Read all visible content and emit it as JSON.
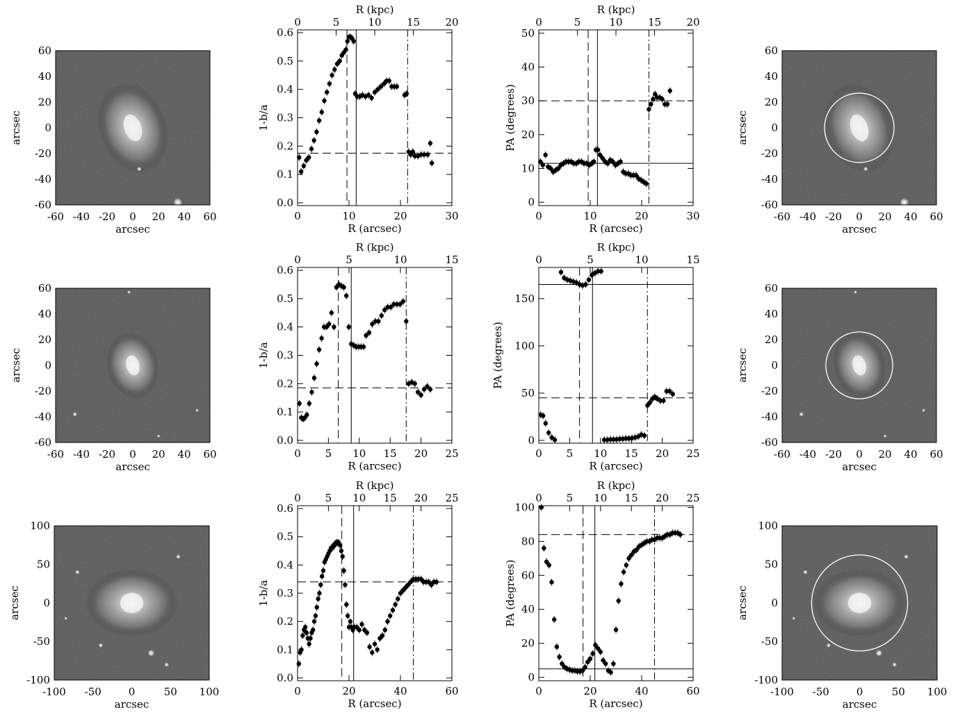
{
  "chart_data": [
    {
      "type": "image",
      "row": 0,
      "xlabel": "arcsec",
      "ylabel": "arcsec",
      "xlim": [
        -60,
        60
      ],
      "ylim": [
        -60,
        60
      ],
      "xticks": [
        -60,
        -40,
        -20,
        0,
        20,
        40,
        60
      ],
      "yticks": [
        -60,
        -40,
        -20,
        0,
        20,
        40,
        60
      ],
      "show_circle": false,
      "galaxy": {
        "sx": 0.22,
        "sy": 0.3,
        "angle": -20
      },
      "stars": [
        {
          "x": 35,
          "y": -58,
          "r": 4
        },
        {
          "x": 5,
          "y": -32,
          "r": 2
        }
      ]
    },
    {
      "type": "scatter",
      "row": 0,
      "quantity": "ellipticity",
      "xlabel": "R (arcsec)",
      "ylabel": "1-b/a",
      "top_xlabel": "R (kpc)",
      "xlim": [
        0,
        30
      ],
      "ylim": [
        -0.01,
        0.61
      ],
      "top_xlim": [
        0,
        20
      ],
      "xticks": [
        0,
        10,
        20,
        30
      ],
      "yticks": [
        0.0,
        0.1,
        0.2,
        0.3,
        0.4,
        0.5,
        0.6
      ],
      "yticklabels": [
        "0.0",
        "0.1",
        "0.2",
        "0.3",
        "0.4",
        "0.5",
        "0.6"
      ],
      "top_xticks": [
        0,
        5,
        10,
        15,
        20
      ],
      "lines": {
        "dashed_v": 9.6,
        "solid_v": 11.4,
        "dashdot_v": 21.4,
        "dashed_h": 0.175
      },
      "x": [
        0.3,
        0.7,
        1.2,
        1.7,
        2.2,
        2.7,
        3.2,
        3.7,
        4.2,
        4.7,
        5.2,
        5.7,
        6.2,
        6.7,
        7.2,
        7.7,
        8.2,
        8.6,
        9.0,
        9.4,
        9.7,
        10.0,
        10.3,
        10.6,
        10.9,
        11.2,
        11.6,
        12.1,
        12.6,
        13.2,
        13.8,
        14.4,
        15.0,
        15.6,
        16.2,
        16.8,
        17.3,
        17.8,
        18.3,
        18.8,
        19.3,
        20.8,
        21.2,
        21.6,
        22.0,
        22.4,
        22.8,
        23.4,
        24.0,
        24.6,
        25.3,
        25.8,
        26.1
      ],
      "y": [
        0.16,
        0.11,
        0.13,
        0.15,
        0.16,
        0.19,
        0.22,
        0.25,
        0.29,
        0.32,
        0.36,
        0.39,
        0.42,
        0.45,
        0.47,
        0.49,
        0.5,
        0.52,
        0.53,
        0.54,
        0.57,
        0.585,
        0.585,
        0.58,
        0.57,
        0.385,
        0.375,
        0.375,
        0.38,
        0.375,
        0.38,
        0.37,
        0.39,
        0.4,
        0.41,
        0.42,
        0.43,
        0.43,
        0.41,
        0.41,
        0.41,
        0.38,
        0.385,
        0.18,
        0.17,
        0.18,
        0.165,
        0.165,
        0.17,
        0.17,
        0.17,
        0.21,
        0.14
      ]
    },
    {
      "type": "scatter",
      "row": 0,
      "quantity": "position_angle",
      "xlabel": "R (arcsec)",
      "ylabel": "PA (degrees)",
      "top_xlabel": "R (kpc)",
      "xlim": [
        0,
        30
      ],
      "ylim": [
        -1,
        51
      ],
      "top_xlim": [
        0,
        20
      ],
      "xticks": [
        0,
        10,
        20,
        30
      ],
      "yticks": [
        0,
        10,
        20,
        30,
        40,
        50
      ],
      "yticklabels": [
        "0",
        "10",
        "20",
        "30",
        "40",
        "50"
      ],
      "top_xticks": [
        0,
        5,
        10,
        15,
        20
      ],
      "lines": {
        "dashed_v": 9.6,
        "solid_v": 11.4,
        "dashdot_v": 21.4,
        "dashed_h": 30,
        "solid_h": 11.5
      },
      "x": [
        0.3,
        0.8,
        1.3,
        1.8,
        2.3,
        2.8,
        3.3,
        3.8,
        4.3,
        4.8,
        5.3,
        5.8,
        6.3,
        6.8,
        7.3,
        7.8,
        8.3,
        8.8,
        9.3,
        9.8,
        10.3,
        10.7,
        11.1,
        11.5,
        11.9,
        12.4,
        12.9,
        13.4,
        13.9,
        14.4,
        14.9,
        15.4,
        15.9,
        16.4,
        16.9,
        17.4,
        17.9,
        18.4,
        18.9,
        19.4,
        19.9,
        20.4,
        20.9,
        21.4,
        21.8,
        22.2,
        22.6,
        23.0,
        23.5,
        24.0,
        24.5,
        25.0,
        25.5
      ],
      "y": [
        12,
        11,
        14,
        10.5,
        10,
        9,
        9.5,
        10,
        11,
        11.5,
        12,
        12,
        12,
        11.5,
        11.5,
        12,
        12,
        11.5,
        11.5,
        11,
        11.5,
        12,
        15.5,
        15.5,
        14,
        13,
        12,
        11.5,
        12.5,
        12,
        11,
        11.5,
        12,
        9,
        8.5,
        8.5,
        8,
        8,
        8,
        7,
        6.5,
        6,
        5.5,
        27.5,
        29,
        30.5,
        32,
        31,
        31,
        30.5,
        29,
        29,
        33
      ]
    },
    {
      "type": "image",
      "row": 0,
      "xlabel": "arcsec",
      "ylabel": "arcsec",
      "xlim": [
        -60,
        60
      ],
      "ylim": [
        -60,
        60
      ],
      "xticks": [
        -60,
        -40,
        -20,
        0,
        20,
        40,
        60
      ],
      "yticks": [
        -60,
        -40,
        -20,
        0,
        20,
        40,
        60
      ],
      "show_circle": true,
      "circle_radius": 27,
      "galaxy": {
        "sx": 0.22,
        "sy": 0.3,
        "angle": -20
      },
      "stars": [
        {
          "x": 35,
          "y": -58,
          "r": 4
        },
        {
          "x": 5,
          "y": -32,
          "r": 2
        }
      ]
    },
    {
      "type": "image",
      "row": 1,
      "xlabel": "arcsec",
      "ylabel": "arcsec",
      "xlim": [
        -60,
        60
      ],
      "ylim": [
        -60,
        60
      ],
      "xticks": [
        -60,
        -40,
        -20,
        0,
        20,
        40,
        60
      ],
      "yticks": [
        -60,
        -40,
        -20,
        0,
        20,
        40,
        60
      ],
      "show_circle": false,
      "galaxy": {
        "sx": 0.17,
        "sy": 0.22,
        "angle": -15
      },
      "stars": [
        {
          "x": -45,
          "y": -38,
          "r": 2
        },
        {
          "x": 20,
          "y": -55,
          "r": 1.5
        },
        {
          "x": 50,
          "y": -35,
          "r": 1.5
        },
        {
          "x": -3,
          "y": 57,
          "r": 1.5
        }
      ]
    },
    {
      "type": "scatter",
      "row": 1,
      "quantity": "ellipticity",
      "xlabel": "R (arcsec)",
      "ylabel": "1-b/a",
      "top_xlabel": "R (kpc)",
      "xlim": [
        0,
        25
      ],
      "ylim": [
        -0.01,
        0.61
      ],
      "top_xlim": [
        0,
        15
      ],
      "xticks": [
        0,
        5,
        10,
        15,
        20,
        25
      ],
      "yticks": [
        0.0,
        0.1,
        0.2,
        0.3,
        0.4,
        0.5,
        0.6
      ],
      "yticklabels": [
        "0.0",
        "0.1",
        "0.2",
        "0.3",
        "0.4",
        "0.5",
        "0.6"
      ],
      "top_xticks": [
        0,
        5,
        10,
        15
      ],
      "lines": {
        "dashed_v": 6.6,
        "solid_v": 8.7,
        "dashdot_v": 17.6,
        "dashed_h": 0.185
      },
      "x": [
        0.3,
        0.6,
        0.9,
        1.2,
        1.5,
        1.9,
        2.3,
        2.7,
        3.1,
        3.5,
        3.9,
        4.3,
        4.7,
        5.1,
        5.5,
        5.9,
        6.3,
        6.7,
        7.1,
        7.5,
        7.9,
        8.3,
        8.7,
        9.1,
        9.5,
        9.9,
        10.3,
        10.7,
        11.1,
        11.6,
        12.1,
        12.6,
        13.1,
        13.6,
        14.1,
        14.6,
        15.1,
        15.6,
        16.1,
        16.6,
        17.1,
        17.6,
        18.0,
        18.5,
        19.0,
        19.5,
        20.0,
        20.5,
        21.0,
        21.5
      ],
      "y": [
        0.13,
        0.08,
        0.075,
        0.08,
        0.09,
        0.13,
        0.17,
        0.22,
        0.27,
        0.32,
        0.36,
        0.4,
        0.4,
        0.41,
        0.45,
        0.4,
        0.54,
        0.55,
        0.545,
        0.54,
        0.51,
        0.4,
        0.34,
        0.335,
        0.33,
        0.33,
        0.33,
        0.33,
        0.37,
        0.38,
        0.41,
        0.42,
        0.42,
        0.44,
        0.46,
        0.47,
        0.47,
        0.48,
        0.48,
        0.48,
        0.49,
        0.42,
        0.2,
        0.205,
        0.2,
        0.17,
        0.16,
        0.18,
        0.19,
        0.18
      ]
    },
    {
      "type": "scatter",
      "row": 1,
      "quantity": "position_angle",
      "xlabel": "R (arcsec)",
      "ylabel": "PA (degrees)",
      "top_xlabel": "R (kpc)",
      "xlim": [
        0,
        25
      ],
      "ylim": [
        -3,
        183
      ],
      "top_xlim": [
        0,
        15
      ],
      "xticks": [
        0,
        5,
        10,
        15,
        20,
        25
      ],
      "yticks": [
        0,
        50,
        100,
        150
      ],
      "yticklabels": [
        "0",
        "50",
        "100",
        "150"
      ],
      "top_xticks": [
        0,
        5,
        10,
        15
      ],
      "lines": {
        "dashed_v": 6.6,
        "solid_v": 8.7,
        "dashdot_v": 17.6,
        "dashed_h": 45,
        "solid_h": 165
      },
      "x": [
        0.3,
        0.7,
        1.1,
        1.6,
        2.1,
        2.6,
        3.6,
        4.1,
        4.6,
        5.1,
        5.6,
        6.1,
        6.6,
        7.1,
        7.6,
        8.1,
        8.6,
        9.1,
        9.6,
        10.1,
        10.6,
        11.1,
        11.6,
        12.1,
        12.6,
        13.1,
        13.6,
        14.1,
        14.6,
        15.1,
        15.6,
        16.1,
        16.6,
        17.1,
        17.6,
        18.0,
        18.4,
        18.8,
        19.2,
        19.7,
        20.2,
        20.7,
        21.2,
        21.7
      ],
      "y": [
        27,
        26,
        18,
        8,
        3,
        0.5,
        178,
        172,
        170,
        169,
        168,
        167,
        165,
        164,
        165,
        170,
        175,
        177,
        179,
        179,
        0.5,
        0.5,
        1,
        1,
        1,
        1.5,
        1.5,
        2,
        2,
        2.5,
        3,
        4,
        6,
        5,
        37,
        40,
        44,
        46,
        44,
        42,
        42,
        52,
        52,
        49
      ]
    },
    {
      "type": "image",
      "row": 1,
      "xlabel": "arcsec",
      "ylabel": "arcsec",
      "xlim": [
        -60,
        60
      ],
      "ylim": [
        -60,
        60
      ],
      "xticks": [
        -60,
        -40,
        -20,
        0,
        20,
        40,
        60
      ],
      "yticks": [
        -60,
        -40,
        -20,
        0,
        20,
        40,
        60
      ],
      "show_circle": true,
      "circle_radius": 26,
      "galaxy": {
        "sx": 0.17,
        "sy": 0.22,
        "angle": -15
      },
      "stars": [
        {
          "x": -45,
          "y": -38,
          "r": 2
        },
        {
          "x": 20,
          "y": -55,
          "r": 1.5
        },
        {
          "x": 50,
          "y": -35,
          "r": 1.5
        },
        {
          "x": -3,
          "y": 57,
          "r": 1.5
        }
      ]
    },
    {
      "type": "image",
      "row": 2,
      "xlabel": "arcsec",
      "ylabel": "arcsec",
      "xlim": [
        -100,
        100
      ],
      "ylim": [
        -100,
        100
      ],
      "xticks": [
        -100,
        -50,
        0,
        50,
        100
      ],
      "yticks": [
        -100,
        -50,
        0,
        50,
        100
      ],
      "show_circle": false,
      "galaxy": {
        "sx": 0.3,
        "sy": 0.22,
        "angle": 0
      },
      "stars": [
        {
          "x": 25,
          "y": -65,
          "r": 3
        },
        {
          "x": 45,
          "y": -80,
          "r": 2
        },
        {
          "x": -70,
          "y": 40,
          "r": 2
        },
        {
          "x": -40,
          "y": -55,
          "r": 2
        },
        {
          "x": 60,
          "y": 60,
          "r": 2
        },
        {
          "x": -85,
          "y": -20,
          "r": 1.5
        }
      ]
    },
    {
      "type": "scatter",
      "row": 2,
      "quantity": "ellipticity",
      "xlabel": "R (arcsec)",
      "ylabel": "1-b/a",
      "top_xlabel": "R (kpc)",
      "xlim": [
        0,
        60
      ],
      "ylim": [
        -0.01,
        0.61
      ],
      "top_xlim": [
        0,
        25
      ],
      "xticks": [
        0,
        20,
        40,
        60
      ],
      "yticks": [
        0.0,
        0.1,
        0.2,
        0.3,
        0.4,
        0.5,
        0.6
      ],
      "yticklabels": [
        "0.0",
        "0.1",
        "0.2",
        "0.3",
        "0.4",
        "0.5",
        "0.6"
      ],
      "top_xticks": [
        0,
        5,
        10,
        15,
        20,
        25
      ],
      "lines": {
        "dashed_v": 17.2,
        "solid_v": 21.8,
        "dashdot_v": 45,
        "dashed_h": 0.34
      },
      "x": [
        0.5,
        1,
        1.5,
        2,
        2.5,
        3,
        3.5,
        4,
        4.5,
        5,
        5.5,
        6,
        6.5,
        7,
        7.5,
        8,
        8.5,
        9,
        9.5,
        10,
        10.5,
        11,
        11.5,
        12,
        12.5,
        13,
        13.5,
        14,
        14.5,
        15,
        15.5,
        16,
        16.5,
        17,
        17.5,
        18,
        18.5,
        19,
        19.5,
        20,
        20.5,
        21,
        21.5,
        22,
        23,
        24,
        25,
        26,
        27,
        28,
        29,
        30,
        31,
        32,
        33,
        34,
        35,
        36,
        37,
        38,
        39,
        40,
        41,
        42,
        43,
        44,
        45,
        46,
        47,
        48,
        49,
        50,
        51,
        52,
        53,
        54
      ],
      "y": [
        0.05,
        0.09,
        0.1,
        0.15,
        0.17,
        0.18,
        0.16,
        0.14,
        0.12,
        0.14,
        0.16,
        0.17,
        0.2,
        0.22,
        0.25,
        0.28,
        0.3,
        0.33,
        0.36,
        0.38,
        0.41,
        0.42,
        0.43,
        0.44,
        0.45,
        0.46,
        0.46,
        0.47,
        0.47,
        0.48,
        0.48,
        0.48,
        0.47,
        0.45,
        0.43,
        0.38,
        0.33,
        0.26,
        0.22,
        0.18,
        0.2,
        0.18,
        0.17,
        0.18,
        0.18,
        0.17,
        0.19,
        0.17,
        0.16,
        0.11,
        0.09,
        0.12,
        0.1,
        0.14,
        0.15,
        0.17,
        0.2,
        0.22,
        0.24,
        0.26,
        0.28,
        0.3,
        0.31,
        0.32,
        0.33,
        0.34,
        0.35,
        0.35,
        0.35,
        0.35,
        0.34,
        0.34,
        0.34,
        0.33,
        0.34,
        0.34
      ]
    },
    {
      "type": "scatter",
      "row": 2,
      "quantity": "position_angle",
      "xlabel": "R (arcsec)",
      "ylabel": "PA (degrees)",
      "top_xlabel": "R (kpc)",
      "xlim": [
        0,
        60
      ],
      "ylim": [
        -2,
        101
      ],
      "top_xlim": [
        0,
        25
      ],
      "xticks": [
        0,
        20,
        40,
        60
      ],
      "yticks": [
        0,
        20,
        40,
        60,
        80,
        100
      ],
      "yticklabels": [
        "0",
        "20",
        "40",
        "60",
        "80",
        "100"
      ],
      "top_xticks": [
        0,
        5,
        10,
        15,
        20,
        25
      ],
      "lines": {
        "dashed_v": 17.2,
        "solid_v": 21.8,
        "dashdot_v": 45,
        "dashed_h": 84,
        "solid_h": 5
      },
      "x": [
        1,
        2,
        3,
        4,
        5,
        6,
        7,
        8,
        9,
        10,
        11,
        12,
        13,
        14,
        15,
        16,
        17,
        18,
        19,
        20,
        21,
        22,
        23,
        24,
        25,
        26,
        27,
        28,
        29,
        30,
        31,
        32,
        33,
        34,
        35,
        36,
        37,
        38,
        39,
        40,
        41,
        42,
        43,
        44,
        45,
        46,
        47,
        48,
        49,
        50,
        51,
        52,
        53,
        54,
        55
      ],
      "y": [
        100,
        76,
        68,
        66,
        56,
        34,
        18,
        12,
        8,
        6,
        5,
        4.5,
        4,
        4,
        3.5,
        3.5,
        4,
        6,
        9,
        11,
        14,
        19,
        17,
        15,
        10,
        8,
        4,
        3,
        8,
        28,
        45,
        55,
        62,
        66,
        70,
        72,
        74,
        75,
        77,
        78,
        79,
        80,
        80,
        81,
        81,
        82,
        82,
        82,
        83,
        84,
        84,
        85,
        85,
        85,
        84
      ]
    },
    {
      "type": "image",
      "row": 2,
      "xlabel": "arcsec",
      "ylabel": "arcsec",
      "xlim": [
        -100,
        100
      ],
      "ylim": [
        -100,
        100
      ],
      "xticks": [
        -100,
        -50,
        0,
        50,
        100
      ],
      "yticks": [
        -100,
        -50,
        0,
        50,
        100
      ],
      "show_circle": true,
      "circle_radius": 62,
      "galaxy": {
        "sx": 0.3,
        "sy": 0.22,
        "angle": 0
      },
      "stars": [
        {
          "x": 25,
          "y": -65,
          "r": 3
        },
        {
          "x": 45,
          "y": -80,
          "r": 2
        },
        {
          "x": -70,
          "y": 40,
          "r": 2
        },
        {
          "x": -40,
          "y": -55,
          "r": 2
        },
        {
          "x": 60,
          "y": 60,
          "r": 2
        },
        {
          "x": -85,
          "y": -20,
          "r": 1.5
        }
      ]
    }
  ]
}
